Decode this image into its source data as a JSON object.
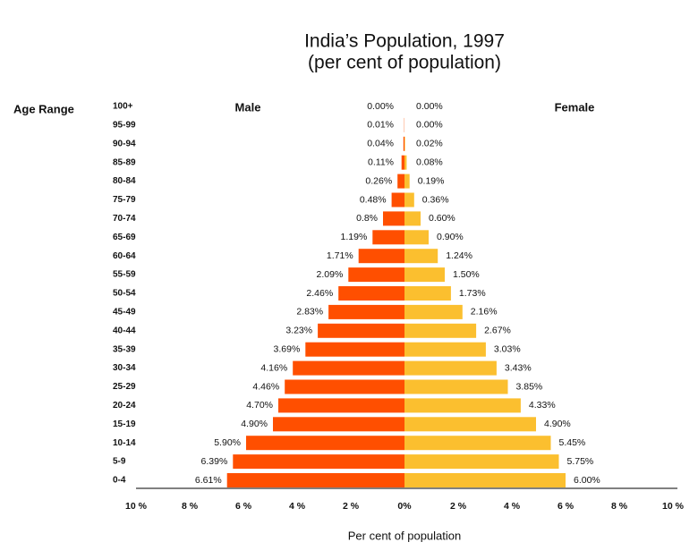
{
  "chart_data": {
    "type": "pyramid",
    "title": "India’s Population, 1997",
    "subtitle": "(per cent of population)",
    "xlabel": "Per cent of population",
    "ylabel": "Age Range",
    "categories": [
      "100+",
      "95-99",
      "90-94",
      "85-89",
      "80-84",
      "75-79",
      "70-74",
      "65-69",
      "60-64",
      "55-59",
      "50-54",
      "45-49",
      "40-44",
      "35-39",
      "30-34",
      "25-29",
      "20-24",
      "15-19",
      "10-14",
      "5-9",
      "0-4"
    ],
    "series": [
      {
        "name": "Male",
        "color": "#ff4f00",
        "values": [
          0.0,
          0.01,
          0.04,
          0.11,
          0.26,
          0.48,
          0.8,
          1.19,
          1.71,
          2.09,
          2.46,
          2.83,
          3.23,
          3.69,
          4.16,
          4.46,
          4.7,
          4.9,
          5.9,
          6.39,
          6.61
        ],
        "value_labels": [
          "0.00%",
          "0.01%",
          "0.04%",
          "0.11%",
          "0.26%",
          "0.48%",
          "0.8%",
          "1.19%",
          "1.71%",
          "2.09%",
          "2.46%",
          "2.83%",
          "3.23%",
          "3.69%",
          "4.16%",
          "4.46%",
          "4.70%",
          "4.90%",
          "5.90%",
          "6.39%",
          "6.61%"
        ]
      },
      {
        "name": "Female",
        "color": "#fbbf2f",
        "values": [
          0.0,
          0.0,
          0.02,
          0.08,
          0.19,
          0.36,
          0.6,
          0.9,
          1.24,
          1.5,
          1.73,
          2.16,
          2.67,
          3.03,
          3.43,
          3.85,
          4.33,
          4.9,
          5.45,
          5.75,
          6.0
        ],
        "value_labels": [
          "0.00%",
          "0.00%",
          "0.02%",
          "0.08%",
          "0.19%",
          "0.36%",
          "0.60%",
          "0.90%",
          "1.24%",
          "1.50%",
          "1.73%",
          "2.16%",
          "2.67%",
          "3.03%",
          "3.43%",
          "3.85%",
          "4.33%",
          "4.90%",
          "5.45%",
          "5.75%",
          "6.00%"
        ]
      }
    ],
    "xlim": [
      -10,
      10
    ],
    "xticks": [
      {
        "value": -10,
        "label": "10 %"
      },
      {
        "value": -8,
        "label": "8 %"
      },
      {
        "value": -6,
        "label": "6 %"
      },
      {
        "value": -4,
        "label": "4 %"
      },
      {
        "value": -2,
        "label": "2 %"
      },
      {
        "value": 0,
        "label": "0%"
      },
      {
        "value": 2,
        "label": "2 %"
      },
      {
        "value": 4,
        "label": "4 %"
      },
      {
        "value": 6,
        "label": "6 %"
      },
      {
        "value": 8,
        "label": "8 %"
      },
      {
        "value": 10,
        "label": "10 %"
      }
    ]
  }
}
